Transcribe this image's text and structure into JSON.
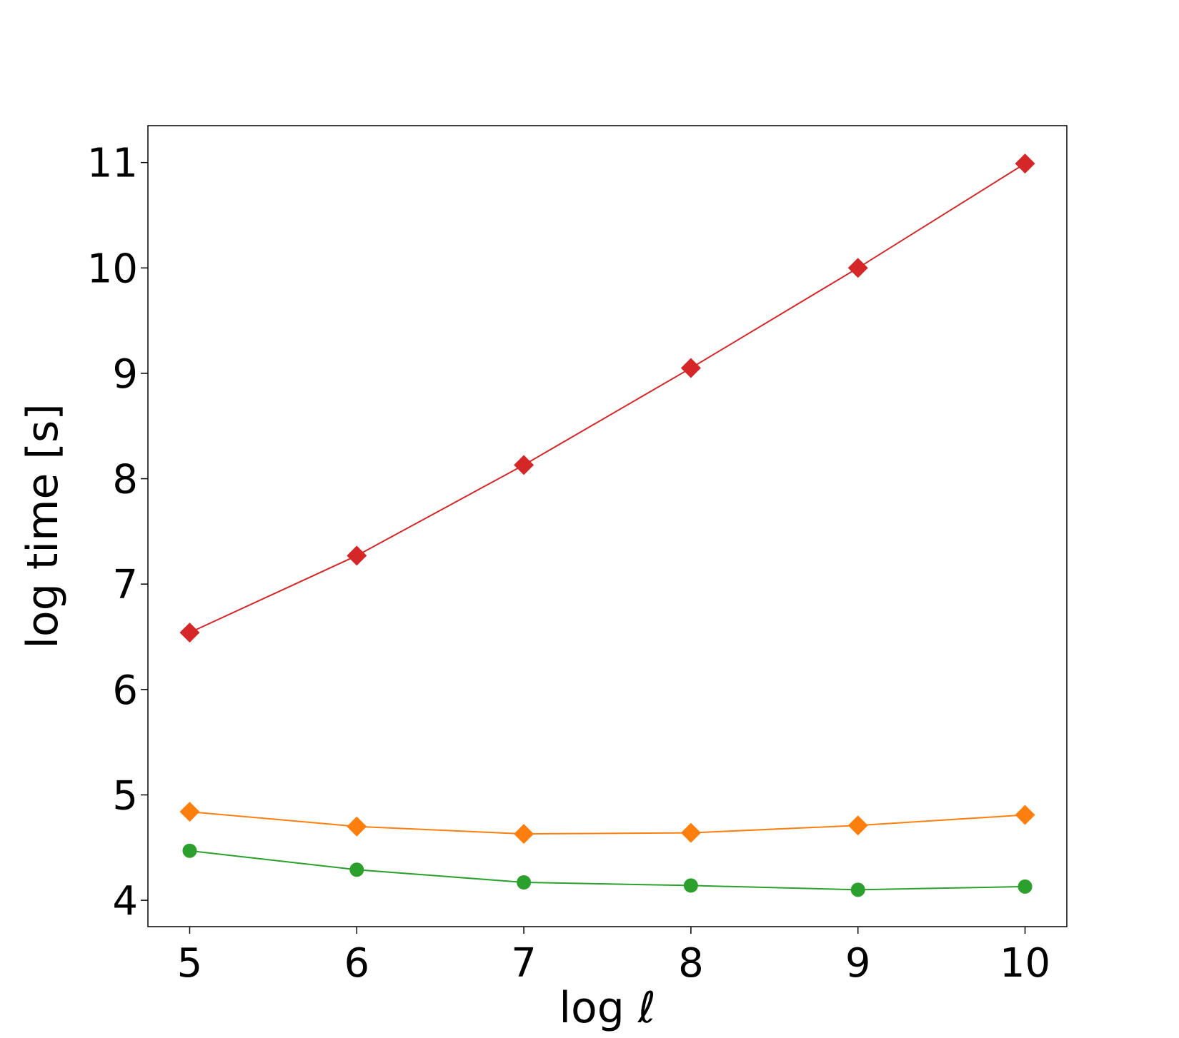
{
  "chart_data": {
    "type": "line",
    "title": "",
    "xlabel": "log ℓ",
    "ylabel": "log time [s]",
    "x": [
      5,
      6,
      7,
      8,
      9,
      10
    ],
    "xticks": [
      "5",
      "6",
      "7",
      "8",
      "9",
      "10"
    ],
    "yticks": [
      "4",
      "5",
      "6",
      "7",
      "8",
      "9",
      "10",
      "11"
    ],
    "xlim": [
      4.75,
      10.25
    ],
    "ylim": [
      3.75,
      11.35
    ],
    "grid": false,
    "series": [
      {
        "color": "#d62728",
        "marker": "diamond",
        "values": [
          6.54,
          7.27,
          8.13,
          9.05,
          10.0,
          10.99
        ]
      },
      {
        "color": "#ff7f0e",
        "marker": "diamond",
        "values": [
          4.84,
          4.7,
          4.63,
          4.64,
          4.71,
          4.81
        ]
      },
      {
        "color": "#2ca02c",
        "marker": "circle",
        "values": [
          4.47,
          4.29,
          4.17,
          4.14,
          4.1,
          4.13
        ]
      }
    ]
  }
}
